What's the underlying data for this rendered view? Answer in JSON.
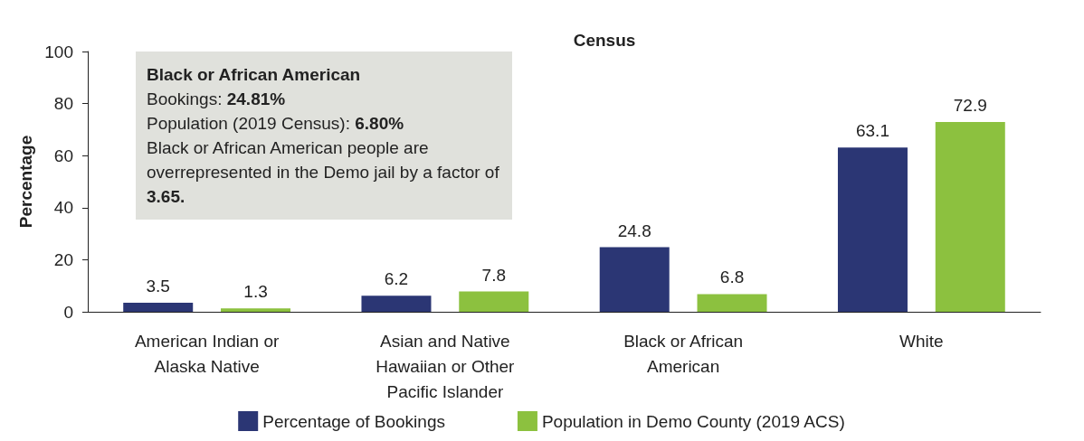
{
  "chart_data": {
    "type": "bar",
    "title": "Census",
    "ylabel": "Percentage",
    "categories": [
      "American Indian or\nAlaska Native",
      "Asian and Native\nHawaiian or Other\nPacific Islander",
      "Black or African\nAmerican",
      "White"
    ],
    "series": [
      {
        "name": "Percentage of Bookings",
        "color": "#2b3674",
        "values": [
          3.5,
          6.2,
          24.8,
          63.1
        ]
      },
      {
        "name": "Population in Demo County (2019 ACS)",
        "color": "#8cc13f",
        "values": [
          1.3,
          7.8,
          6.8,
          72.9
        ]
      }
    ],
    "ylim": [
      0,
      100
    ],
    "yticks": [
      0,
      20,
      40,
      60,
      80,
      100
    ],
    "grid": false,
    "legend": "bottom",
    "data_labels": true,
    "annotations": [
      "Black or African American",
      "Bookings: 24.81%",
      "Population (2019 Census): 6.80%",
      "Black or African American people are overrepresented in the Demo jail by a factor of 3.65."
    ]
  }
}
